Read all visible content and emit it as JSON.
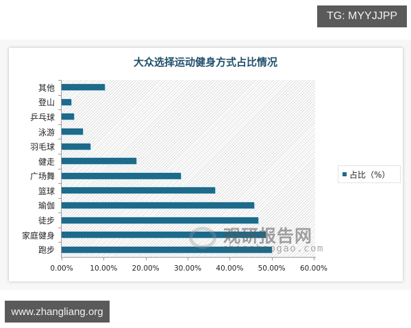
{
  "watermarks": {
    "top_right": "TG: MYYJJPP",
    "bottom_left": "www.zhangliang.org",
    "logo_cn": "观研报告网",
    "logo_en": "chinabaogao.com"
  },
  "chart_data": {
    "type": "bar",
    "orientation": "horizontal",
    "title": "大众选择运动健身方式占比情况",
    "xlabel": "",
    "ylabel": "",
    "categories": [
      "其他",
      "登山",
      "乒乓球",
      "泳游",
      "羽毛球",
      "健走",
      "广场舞",
      "篮球",
      "瑜伽",
      "徒步",
      "家庭健身",
      "跑步"
    ],
    "series": [
      {
        "name": "占比（%）",
        "color": "#1e6a8a",
        "values": [
          10.3,
          2.3,
          3.0,
          5.1,
          6.8,
          17.8,
          28.4,
          36.5,
          45.8,
          46.8,
          48.6,
          50.0
        ]
      }
    ],
    "xlim": [
      0,
      60
    ],
    "xticks": [
      "0.00%",
      "10.00%",
      "20.00%",
      "30.00%",
      "40.00%",
      "50.00%",
      "60.00%"
    ],
    "grid": false,
    "legend_position": "right",
    "legend": [
      "占比（%）"
    ]
  }
}
